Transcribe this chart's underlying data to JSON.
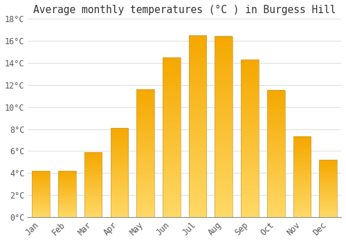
{
  "title": "Average monthly temperatures (°C ) in Burgess Hill",
  "months": [
    "Jan",
    "Feb",
    "Mar",
    "Apr",
    "May",
    "Jun",
    "Jul",
    "Aug",
    "Sep",
    "Oct",
    "Nov",
    "Dec"
  ],
  "values": [
    4.2,
    4.2,
    5.9,
    8.1,
    11.6,
    14.5,
    16.5,
    16.4,
    14.3,
    11.5,
    7.3,
    5.2
  ],
  "bar_color_top": "#F5A800",
  "bar_color_bottom": "#FFD966",
  "bar_edge_color": "#C8A040",
  "ylim": [
    0,
    18
  ],
  "yticks": [
    0,
    2,
    4,
    6,
    8,
    10,
    12,
    14,
    16,
    18
  ],
  "background_color": "#FFFFFF",
  "grid_color": "#E0E0E0",
  "title_fontsize": 10.5,
  "tick_fontsize": 8.5,
  "font_family": "monospace"
}
